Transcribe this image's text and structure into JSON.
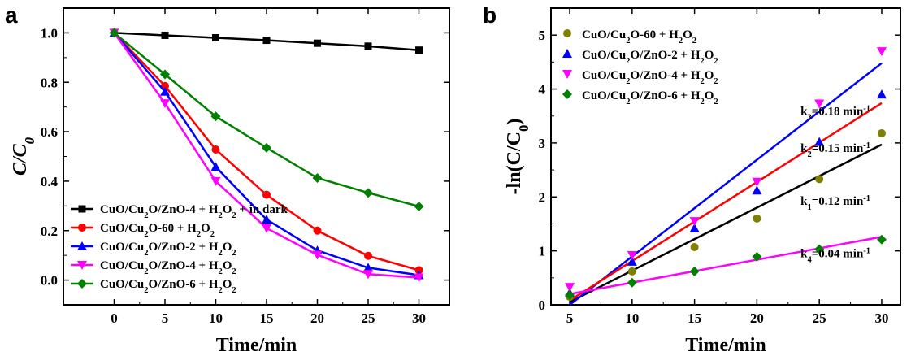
{
  "chart_data": [
    {
      "panel": "a",
      "type": "line",
      "xlabel": "Time/min",
      "ylabel_main": "C/C",
      "ylabel_sub": "0",
      "x": [
        0,
        5,
        10,
        15,
        20,
        25,
        30
      ],
      "xlim": [
        -5,
        33
      ],
      "ylim": [
        -0.1,
        1.1
      ],
      "xticks": [
        0,
        5,
        10,
        15,
        20,
        25,
        30
      ],
      "yticks": [
        0.0,
        0.2,
        0.4,
        0.6,
        0.8,
        1.0
      ],
      "ytick_labels": [
        "0.0",
        "0.2",
        "0.4",
        "0.6",
        "0.8",
        "1.0"
      ],
      "legend_position": "bottom-left",
      "series": [
        {
          "name": [
            [
              "CuO/Cu",
              "n"
            ],
            [
              "2",
              "sub"
            ],
            [
              "O/ZnO-4 + H",
              "n"
            ],
            [
              "2",
              "sub"
            ],
            [
              "O",
              "n"
            ],
            [
              "2",
              "sub"
            ],
            [
              " + in dark",
              "n"
            ]
          ],
          "color": "#000000",
          "marker": "square",
          "values": [
            1.0,
            0.99,
            0.98,
            0.97,
            0.958,
            0.946,
            0.93
          ]
        },
        {
          "name": [
            [
              "CuO/Cu",
              "n"
            ],
            [
              "2",
              "sub"
            ],
            [
              "O-60 + H",
              "n"
            ],
            [
              "2",
              "sub"
            ],
            [
              "O",
              "n"
            ],
            [
              "2",
              "sub"
            ]
          ],
          "color": "#ff0000",
          "marker": "circle",
          "values": [
            1.0,
            0.785,
            0.528,
            0.345,
            0.2,
            0.098,
            0.04
          ]
        },
        {
          "name": [
            [
              "CuO/Cu",
              "n"
            ],
            [
              "2",
              "sub"
            ],
            [
              "O/ZnO-2 + H",
              "n"
            ],
            [
              "2",
              "sub"
            ],
            [
              "O",
              "n"
            ],
            [
              "2",
              "sub"
            ]
          ],
          "color": "#0000ff",
          "marker": "triangle-up",
          "values": [
            1.0,
            0.762,
            0.458,
            0.245,
            0.12,
            0.05,
            0.02
          ]
        },
        {
          "name": [
            [
              "CuO/Cu",
              "n"
            ],
            [
              "2",
              "sub"
            ],
            [
              "O/ZnO-4 + H",
              "n"
            ],
            [
              "2",
              "sub"
            ],
            [
              "O",
              "n"
            ],
            [
              "2",
              "sub"
            ]
          ],
          "color": "#ff00ff",
          "marker": "triangle-down",
          "values": [
            1.0,
            0.715,
            0.4,
            0.21,
            0.102,
            0.024,
            0.01
          ]
        },
        {
          "name": [
            [
              "CuO/Cu",
              "n"
            ],
            [
              "2",
              "sub"
            ],
            [
              "O/ZnO-6 + H",
              "n"
            ],
            [
              "2",
              "sub"
            ],
            [
              "O",
              "n"
            ],
            [
              "2",
              "sub"
            ]
          ],
          "color": "#008000",
          "marker": "diamond",
          "values": [
            1.0,
            0.832,
            0.662,
            0.535,
            0.413,
            0.353,
            0.298
          ]
        }
      ]
    },
    {
      "panel": "b",
      "type": "scatter",
      "xlabel": "Time/min",
      "ylabel": "-ln(C/C",
      "ylabel_sub": "0",
      "ylabel_end": ")",
      "x": [
        5,
        10,
        15,
        20,
        25,
        30
      ],
      "xlim": [
        3.5,
        31.5
      ],
      "ylim": [
        0,
        5.5
      ],
      "xticks": [
        5,
        10,
        15,
        20,
        25,
        30
      ],
      "yticks": [
        0,
        1,
        2,
        3,
        4,
        5
      ],
      "legend_position": "top-left",
      "series": [
        {
          "name": [
            [
              "CuO/Cu",
              "n"
            ],
            [
              "2",
              "sub"
            ],
            [
              "O-60 + H",
              "n"
            ],
            [
              "2",
              "sub"
            ],
            [
              "O",
              "n"
            ],
            [
              "2",
              "sub"
            ]
          ],
          "color": "#808000",
          "marker": "circle",
          "values": [
            0.15,
            0.62,
            1.07,
            1.6,
            2.33,
            3.18
          ],
          "fit": {
            "color": "#000000",
            "from": [
              5,
              0.05
            ],
            "to": [
              30,
              2.97
            ]
          }
        },
        {
          "name": [
            [
              "CuO/Cu",
              "n"
            ],
            [
              "2",
              "sub"
            ],
            [
              "O/ZnO-2 + H",
              "n"
            ],
            [
              "2",
              "sub"
            ],
            [
              "O",
              "n"
            ],
            [
              "2",
              "sub"
            ]
          ],
          "color": "#0000ff",
          "marker": "triangle-up",
          "values": [
            0.22,
            0.8,
            1.42,
            2.12,
            3.02,
            3.9
          ],
          "fit": {
            "color": "#0000ff",
            "from": [
              5,
              0.0
            ],
            "to": [
              30,
              4.48
            ]
          }
        },
        {
          "name": [
            [
              "CuO/Cu",
              "n"
            ],
            [
              "2",
              "sub"
            ],
            [
              "O/ZnO-4 + H",
              "n"
            ],
            [
              "2",
              "sub"
            ],
            [
              "O",
              "n"
            ],
            [
              "2",
              "sub"
            ]
          ],
          "color": "#ff00ff",
          "marker": "triangle-down",
          "values": [
            0.33,
            0.92,
            1.55,
            2.28,
            3.73,
            4.7
          ],
          "fit": {
            "color": "#ff0000",
            "from": [
              5,
              0.08
            ],
            "to": [
              30,
              3.74
            ]
          }
        },
        {
          "name": [
            [
              "CuO/Cu",
              "n"
            ],
            [
              "2",
              "sub"
            ],
            [
              "O/ZnO-6 + H",
              "n"
            ],
            [
              "2",
              "sub"
            ],
            [
              "O",
              "n"
            ],
            [
              "2",
              "sub"
            ]
          ],
          "color": "#008000",
          "marker": "diamond",
          "values": [
            0.18,
            0.41,
            0.62,
            0.89,
            1.03,
            1.21
          ],
          "fit": {
            "color": "#ff00ff",
            "from": [
              5,
              0.2
            ],
            "to": [
              30,
              1.26
            ]
          }
        }
      ],
      "annotations": [
        {
          "text": [
            [
              "k",
              "n"
            ],
            [
              "3",
              "sub"
            ],
            [
              "=0.18 min",
              "n"
            ],
            [
              "-1",
              "sup"
            ]
          ],
          "x": 23.5,
          "y": 3.52
        },
        {
          "text": [
            [
              "k",
              "n"
            ],
            [
              "2",
              "sub"
            ],
            [
              "=0.15 min",
              "n"
            ],
            [
              "-1",
              "sup"
            ]
          ],
          "x": 23.5,
          "y": 2.83
        },
        {
          "text": [
            [
              "k",
              "n"
            ],
            [
              "1",
              "sub"
            ],
            [
              "=0.12 min",
              "n"
            ],
            [
              "-1",
              "sup"
            ]
          ],
          "x": 23.5,
          "y": 1.85
        },
        {
          "text": [
            [
              "k",
              "n"
            ],
            [
              "4",
              "sub"
            ],
            [
              "=0.04 min",
              "n"
            ],
            [
              "-1",
              "sup"
            ]
          ],
          "x": 23.5,
          "y": 0.88
        }
      ]
    }
  ],
  "panel_labels": [
    "a",
    "b"
  ]
}
